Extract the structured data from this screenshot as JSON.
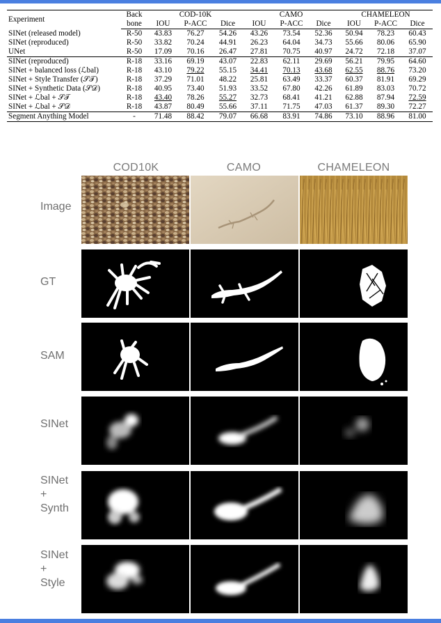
{
  "table": {
    "header": {
      "experiment": "Experiment",
      "backbone_line1": "Back",
      "backbone_line2": "bone",
      "datasets": [
        "COD-10K",
        "CAMO",
        "CHAMELEON"
      ],
      "metrics": [
        "IOU",
        "P-ACC",
        "Dice",
        "IOU",
        "P-ACC",
        "Dice",
        "IOU",
        "P-ACC",
        "Dice"
      ]
    },
    "group1": [
      {
        "name": "SINet (released model)",
        "backbone": "R-50",
        "vals": [
          "43.83",
          "76.27",
          "54.26",
          "43.26",
          "73.54",
          "52.36",
          "50.94",
          "78.23",
          "60.43"
        ]
      },
      {
        "name": "SINet (reproduced)",
        "backbone": "R-50",
        "vals": [
          "33.82",
          "70.24",
          "44.91",
          "26.23",
          "64.04",
          "34.73",
          "55.66",
          "80.06",
          "65.90"
        ]
      },
      {
        "name": "UNet",
        "backbone": "R-50",
        "vals": [
          "17.09",
          "70.16",
          "26.47",
          "27.81",
          "70.75",
          "40.97",
          "24.72",
          "72.18",
          "37.07"
        ]
      }
    ],
    "group2": [
      {
        "name": "SINet (reproduced)",
        "backbone": "R-18",
        "vals": [
          "33.16",
          "69.19",
          "43.07",
          "22.83",
          "62.11",
          "29.69",
          "56.21",
          "79.95",
          "64.60"
        ]
      },
      {
        "name": "SINet + balanced loss (ℒbal)",
        "backbone": "R-18",
        "vals": [
          "43.10",
          "79.22",
          "55.15",
          "34.41",
          "70.13",
          "43.68",
          "62.55",
          "88.76",
          "73.20"
        ]
      },
      {
        "name": "SINet + Style Transfer (𝒮𝒯)",
        "backbone": "R-18",
        "vals": [
          "37.29",
          "71.01",
          "48.22",
          "25.81",
          "63.49",
          "33.37",
          "60.37",
          "81.91",
          "69.29"
        ]
      },
      {
        "name": "SINet + Synthetic Data (𝒮𝒟)",
        "backbone": "R-18",
        "vals": [
          "40.95",
          "73.40",
          "51.93",
          "33.52",
          "67.80",
          "42.26",
          "61.89",
          "83.03",
          "70.72"
        ]
      },
      {
        "name": "SINet + ℒbal + 𝒮𝒯",
        "backbone": "R-18",
        "vals": [
          "43.40",
          "78.26",
          "55.27",
          "32.73",
          "68.41",
          "41.21",
          "62.88",
          "87.94",
          "72.59"
        ]
      },
      {
        "name": "SINet + ℒbal + 𝒮𝒟",
        "backbone": "R-18",
        "vals": [
          "43.87",
          "80.49",
          "55.66",
          "37.11",
          "71.75",
          "47.03",
          "61.37",
          "89.30",
          "72.27"
        ]
      }
    ],
    "group3": [
      {
        "name": "Segment Anything Model",
        "backbone": "-",
        "vals": [
          "71.48",
          "88.42",
          "79.07",
          "66.68",
          "83.91",
          "74.86",
          "73.10",
          "88.96",
          "81.00"
        ]
      }
    ]
  },
  "grid": {
    "columns": [
      "COD10K",
      "CAMO",
      "CHAMELEON"
    ],
    "rows": [
      {
        "label": "Image"
      },
      {
        "label": "GT"
      },
      {
        "label": "SAM"
      },
      {
        "label": "SINet"
      },
      {
        "label": "SINet\n+\nSynth"
      },
      {
        "label": "SINet\n+\nStyle"
      }
    ]
  },
  "colors": {
    "accent_bar": "#4a7fe0",
    "label_gray": "#6f6f6f"
  }
}
